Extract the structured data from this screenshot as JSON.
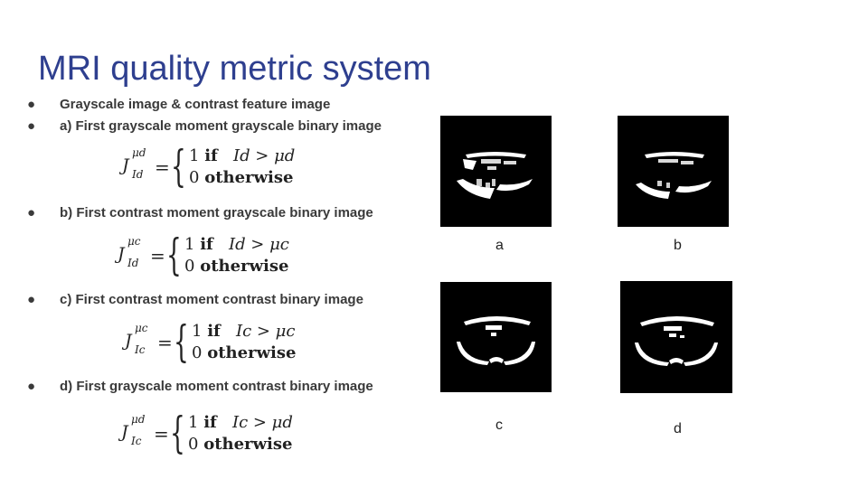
{
  "title": "MRI quality metric system",
  "bullets": [
    "Grayscale image & contrast feature image",
    "a) First grayscale moment grayscale binary image",
    "b) First contrast moment grayscale binary image",
    "c) First contrast moment contrast binary image",
    "d) First grayscale moment contrast binary image"
  ],
  "bullet_symbol": "●",
  "equations": [
    {
      "lhs": "J",
      "sup": "μd",
      "sub": "Id",
      "eq": "=",
      "case1_num": "1",
      "case1_kw": "if",
      "case1_cond": "Id > μd",
      "case2_num": "0",
      "case2_kw": "otherwise"
    },
    {
      "lhs": "J",
      "sup": "μc",
      "sub": "Id",
      "eq": "=",
      "case1_num": "1",
      "case1_kw": "if",
      "case1_cond": "Id > μc",
      "case2_num": "0",
      "case2_kw": "otherwise"
    },
    {
      "lhs": "J",
      "sup": "μc",
      "sub": "Ic",
      "eq": "=",
      "case1_num": "1",
      "case1_kw": "if",
      "case1_cond": "Ic > μc",
      "case2_num": "0",
      "case2_kw": "otherwise"
    },
    {
      "lhs": "J",
      "sup": "μd",
      "sub": "Ic",
      "eq": "=",
      "case1_num": "1",
      "case1_kw": "if",
      "case1_cond": "Ic > μd",
      "case2_num": "0",
      "case2_kw": "otherwise"
    }
  ],
  "image_labels": [
    "a",
    "b",
    "c",
    "d"
  ]
}
